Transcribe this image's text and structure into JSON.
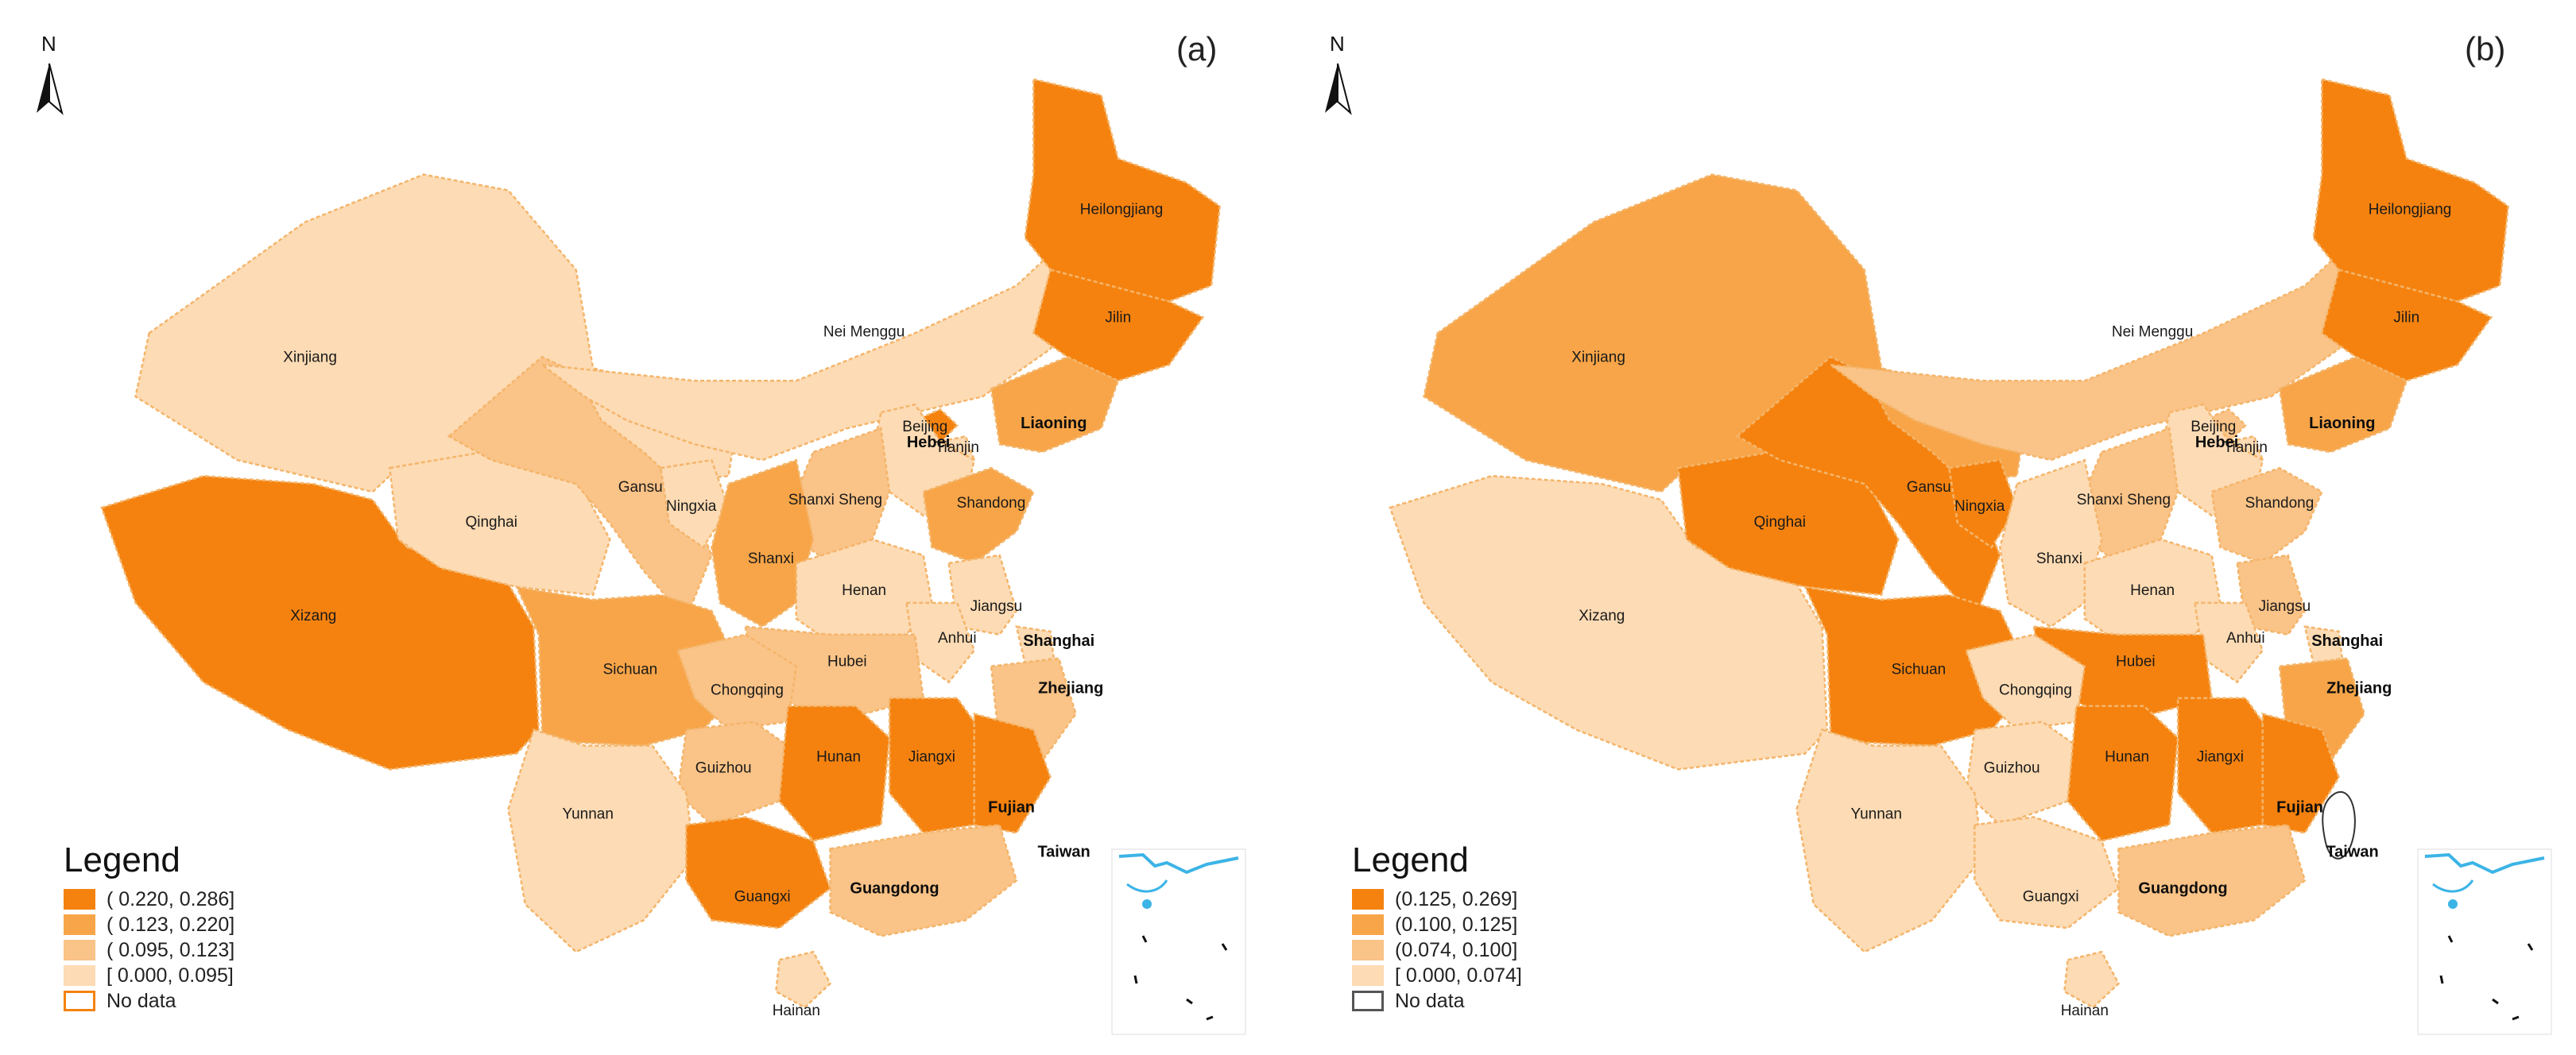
{
  "panels": [
    {
      "id": "a",
      "label": "(a)",
      "north_label": "N",
      "legend": {
        "title": "Legend",
        "items": [
          {
            "label": "( 0.220, 0.286]",
            "color": "#f5820f"
          },
          {
            "label": "( 0.123, 0.220]",
            "color": "#f7a548"
          },
          {
            "label": "( 0.095, 0.123]",
            "color": "#fac387"
          },
          {
            "label": "[ 0.000, 0.095]",
            "color": "#fddbb4"
          },
          {
            "label": "No data",
            "color": "#ffffff",
            "border": "#f5820f"
          }
        ]
      },
      "provinces": {
        "Xinjiang": 3,
        "Xizang": 0,
        "Qinghai": 3,
        "Gansu": 2,
        "Nei Menggu": 3,
        "Heilongjiang": 0,
        "Jilin": 0,
        "Liaoning": 1,
        "Beijing": 0,
        "Tianjin": 3,
        "Hebei": 3,
        "Ningxia": 3,
        "Shanxi Sheng": 2,
        "Shanxi": 1,
        "Shandong": 1,
        "Henan": 3,
        "Jiangsu": 3,
        "Anhui": 3,
        "Shanghai": 3,
        "Zhejiang": 2,
        "Hubei": 2,
        "Sichuan": 1,
        "Chongqing": 2,
        "Guizhou": 2,
        "Hunan": 0,
        "Jiangxi": 0,
        "Fujian": 0,
        "Yunnan": 3,
        "Guangxi": 0,
        "Guangdong": 2,
        "Hainan": 3,
        "Taiwan": 4
      }
    },
    {
      "id": "b",
      "label": "(b)",
      "north_label": "N",
      "legend": {
        "title": "Legend",
        "items": [
          {
            "label": "(0.125, 0.269]",
            "color": "#f5820f"
          },
          {
            "label": "(0.100, 0.125]",
            "color": "#f7a548"
          },
          {
            "label": "(0.074, 0.100]",
            "color": "#fac387"
          },
          {
            "label": "[ 0.000, 0.074]",
            "color": "#fddbb4"
          },
          {
            "label": "No data",
            "color": "#ffffff",
            "border": "#555555"
          }
        ]
      },
      "provinces": {
        "Xinjiang": 1,
        "Xizang": 3,
        "Qinghai": 0,
        "Gansu": 0,
        "Nei Menggu": 2,
        "Heilongjiang": 0,
        "Jilin": 0,
        "Liaoning": 1,
        "Beijing": 2,
        "Tianjin": 3,
        "Hebei": 3,
        "Ningxia": 0,
        "Shanxi Sheng": 2,
        "Shanxi": 3,
        "Shandong": 2,
        "Henan": 3,
        "Jiangsu": 2,
        "Anhui": 3,
        "Shanghai": 3,
        "Zhejiang": 1,
        "Hubei": 0,
        "Sichuan": 0,
        "Chongqing": 3,
        "Guizhou": 3,
        "Hunan": 0,
        "Jiangxi": 0,
        "Fujian": 0,
        "Yunnan": 3,
        "Guangxi": 3,
        "Guangdong": 2,
        "Hainan": 3,
        "Taiwan": 4
      }
    }
  ],
  "province_names": {
    "Xinjiang": "Xinjiang",
    "Xizang": "Xizang",
    "Qinghai": "Qinghai",
    "Gansu": "Gansu",
    "Nei Menggu": "Nei Menggu",
    "Heilongjiang": "Heilongjiang",
    "Jilin": "Jilin",
    "Liaoning": "Liaoning",
    "Beijing": "Beijing",
    "Tianjin": "Tianjin",
    "Hebei": "Hebei",
    "Ningxia": "Ningxia",
    "Shanxi Sheng": "Shanxi Sheng",
    "Shanxi": "Shanxi",
    "Shandong": "Shandong",
    "Henan": "Henan",
    "Jiangsu": "Jiangsu",
    "Anhui": "Anhui",
    "Shanghai": "Shanghai",
    "Zhejiang": "Zhejiang",
    "Hubei": "Hubei",
    "Sichuan": "Sichuan",
    "Chongqing": "Chongqing",
    "Guizhou": "Guizhou",
    "Hunan": "Hunan",
    "Jiangxi": "Jiangxi",
    "Fujian": "Fujian",
    "Yunnan": "Yunnan",
    "Guangxi": "Guangxi",
    "Guangdong": "Guangdong",
    "Hainan": "Hainan",
    "Taiwan": "Taiwan"
  },
  "colors": {
    "class_0": "#f5820f",
    "class_1": "#f7a548",
    "class_2": "#fac387",
    "class_3": "#fddbb4",
    "no_data": "#ffffff",
    "boundary_line": "#ffff1a",
    "sea_line": "#3cb4e6"
  }
}
